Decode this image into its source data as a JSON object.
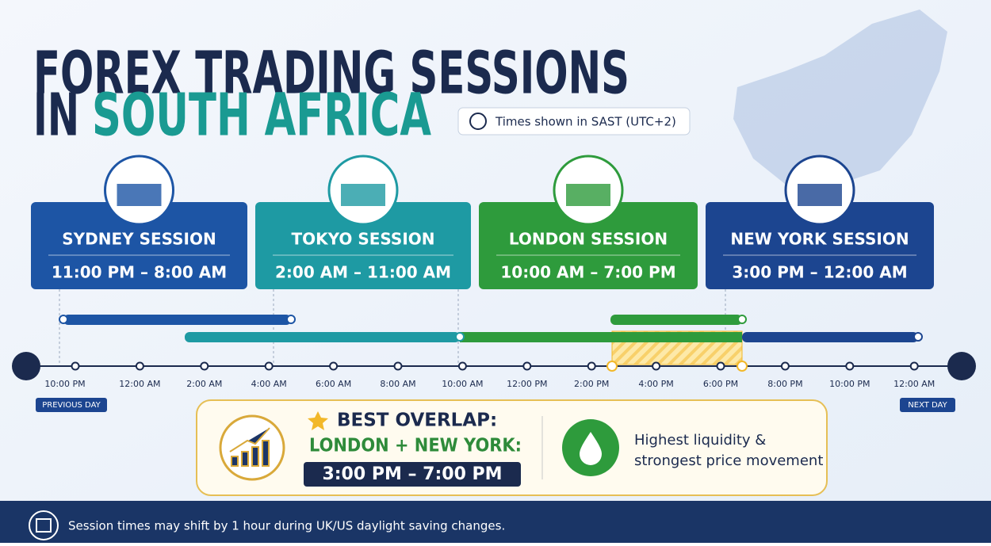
{
  "header": {
    "title_line1": "FOREX TRADING SESSIONS",
    "title_line2_prefix": "IN",
    "title_line2_highlight": "SOUTH AFRICA",
    "timezone_note": "Times shown in SAST (UTC+2)"
  },
  "sessions": [
    {
      "name": "SYDNEY SESSION",
      "time": "11:00 PM – 8:00 AM"
    },
    {
      "name": "TOKYO SESSION",
      "time": "2:00 AM – 11:00 AM"
    },
    {
      "name": "LONDON SESSION",
      "time": "10:00 AM – 7:00 PM"
    },
    {
      "name": "NEW YORK SESSION",
      "time": "3:00 PM – 12:00 AM"
    }
  ],
  "timeline": {
    "ticks": [
      "10:00 PM",
      "12:00 AM",
      "2:00 AM",
      "4:00 AM",
      "6:00 AM",
      "8:00 AM",
      "10:00 AM",
      "12:00 PM",
      "2:00 PM",
      "4:00 PM",
      "6:00 PM",
      "8:00 PM",
      "10:00 PM",
      "12:00 AM"
    ],
    "start_label": "PREVIOUS DAY",
    "end_label": "NEXT DAY"
  },
  "overlap": {
    "heading": "BEST OVERLAP:",
    "pair": "LONDON + NEW YORK:",
    "time": "3:00 PM – 7:00 PM",
    "benefit_lines": [
      "Highest liquidity &",
      "strongest price movement"
    ]
  },
  "footer": {
    "note": "Session times may shift by 1 hour during UK/US daylight saving changes."
  }
}
